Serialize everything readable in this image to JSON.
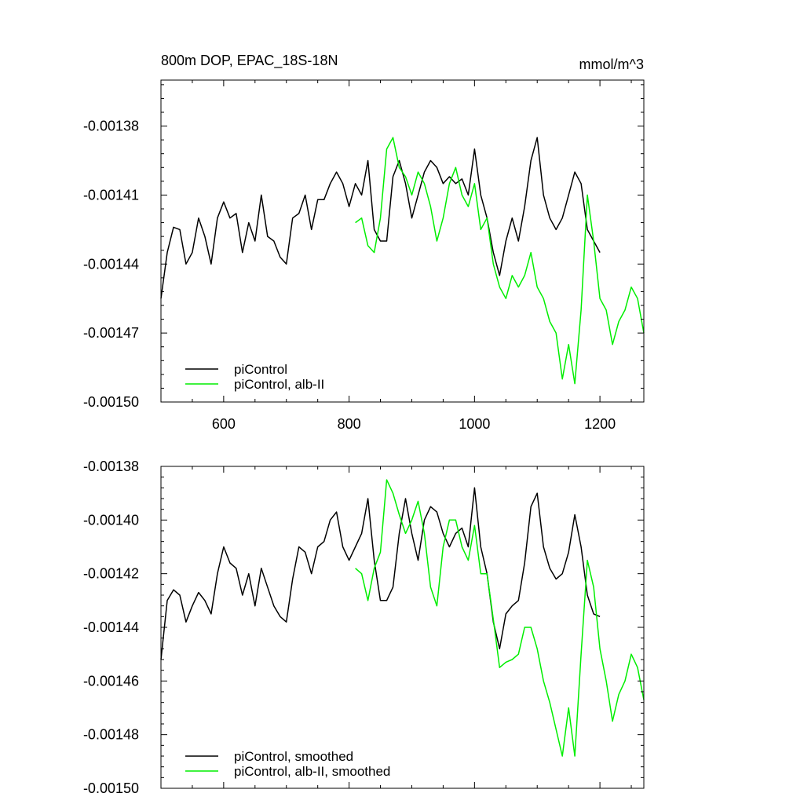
{
  "chart_data": [
    {
      "type": "line",
      "title": "800m DOP, EPAC_18S-18N",
      "units": "mmol/m^3",
      "xlim": [
        500,
        1270
      ],
      "ylim": [
        -0.0015,
        -0.00136
      ],
      "xticks": [
        600,
        800,
        1000,
        1200
      ],
      "xtick_labels": [
        "600",
        "800",
        "1000",
        "1200"
      ],
      "yticks": [
        -0.00138,
        -0.00141,
        -0.00144,
        -0.00147,
        -0.0015
      ],
      "ytick_labels": [
        "-0.00138",
        "-0.00141",
        "-0.00144",
        "-0.00147",
        "-0.00150"
      ],
      "legend_position": "bottom-left",
      "series": [
        {
          "name": "piControl",
          "color": "#000000",
          "x": [
            500,
            510,
            520,
            530,
            540,
            550,
            560,
            570,
            580,
            590,
            600,
            610,
            620,
            630,
            640,
            650,
            660,
            670,
            680,
            690,
            700,
            710,
            720,
            730,
            740,
            750,
            760,
            770,
            780,
            790,
            800,
            810,
            820,
            830,
            840,
            850,
            860,
            870,
            880,
            890,
            900,
            910,
            920,
            930,
            940,
            950,
            960,
            970,
            980,
            990,
            1000,
            1010,
            1020,
            1030,
            1040,
            1050,
            1060,
            1070,
            1080,
            1090,
            1100,
            1110,
            1120,
            1130,
            1140,
            1150,
            1160,
            1170,
            1180,
            1190,
            1200
          ],
          "y": [
            -0.001455,
            -0.001435,
            -0.001424,
            -0.001425,
            -0.00144,
            -0.001435,
            -0.00142,
            -0.001428,
            -0.00144,
            -0.00142,
            -0.001413,
            -0.00142,
            -0.001418,
            -0.001435,
            -0.001422,
            -0.00143,
            -0.00141,
            -0.001428,
            -0.00143,
            -0.001437,
            -0.00144,
            -0.00142,
            -0.001418,
            -0.00141,
            -0.001425,
            -0.001412,
            -0.001412,
            -0.001405,
            -0.0014,
            -0.001405,
            -0.001415,
            -0.001405,
            -0.00141,
            -0.001395,
            -0.001425,
            -0.00143,
            -0.00143,
            -0.001402,
            -0.001395,
            -0.001405,
            -0.00142,
            -0.00141,
            -0.0014,
            -0.001395,
            -0.001398,
            -0.001405,
            -0.001402,
            -0.001405,
            -0.001403,
            -0.00141,
            -0.00139,
            -0.00141,
            -0.00142,
            -0.001435,
            -0.001445,
            -0.00143,
            -0.00142,
            -0.00143,
            -0.001415,
            -0.001395,
            -0.001385,
            -0.00141,
            -0.00142,
            -0.001425,
            -0.00142,
            -0.00141,
            -0.0014,
            -0.001405,
            -0.001425,
            -0.00143,
            -0.001435
          ]
        },
        {
          "name": "piControl, alb-II",
          "color": "#00ee00",
          "x": [
            810,
            820,
            830,
            840,
            850,
            860,
            870,
            880,
            890,
            900,
            910,
            920,
            930,
            940,
            950,
            960,
            970,
            980,
            990,
            1000,
            1010,
            1020,
            1030,
            1040,
            1050,
            1060,
            1070,
            1080,
            1090,
            1100,
            1110,
            1120,
            1130,
            1140,
            1150,
            1160,
            1170,
            1180,
            1190,
            1200,
            1210,
            1220,
            1230,
            1240,
            1250,
            1260,
            1270
          ],
          "y": [
            -0.001422,
            -0.00142,
            -0.001432,
            -0.001435,
            -0.00142,
            -0.00139,
            -0.001385,
            -0.001398,
            -0.001402,
            -0.00141,
            -0.0014,
            -0.001405,
            -0.001415,
            -0.00143,
            -0.00142,
            -0.001405,
            -0.001398,
            -0.00141,
            -0.001415,
            -0.001405,
            -0.001425,
            -0.00142,
            -0.00144,
            -0.00145,
            -0.001455,
            -0.001445,
            -0.00145,
            -0.001445,
            -0.001435,
            -0.00145,
            -0.001455,
            -0.001465,
            -0.00147,
            -0.00149,
            -0.001475,
            -0.001492,
            -0.00146,
            -0.00141,
            -0.00143,
            -0.001455,
            -0.00146,
            -0.001475,
            -0.001465,
            -0.00146,
            -0.00145,
            -0.001455,
            -0.00147
          ]
        }
      ]
    },
    {
      "type": "line",
      "xlim": [
        500,
        1270
      ],
      "ylim": [
        -0.0015,
        -0.00138
      ],
      "xticks": [
        600,
        800,
        1000,
        1200
      ],
      "yticks": [
        -0.00138,
        -0.0014,
        -0.00142,
        -0.00144,
        -0.00146,
        -0.00148,
        -0.0015
      ],
      "ytick_labels": [
        "-0.00138",
        "-0.00140",
        "-0.00142",
        "-0.00144",
        "-0.00146",
        "-0.00148",
        "-0.00150"
      ],
      "legend_position": "bottom-left",
      "series": [
        {
          "name": "piControl, smoothed",
          "color": "#000000",
          "x": [
            500,
            510,
            520,
            530,
            540,
            550,
            560,
            570,
            580,
            590,
            600,
            610,
            620,
            630,
            640,
            650,
            660,
            670,
            680,
            690,
            700,
            710,
            720,
            730,
            740,
            750,
            760,
            770,
            780,
            790,
            800,
            810,
            820,
            830,
            840,
            850,
            860,
            870,
            880,
            890,
            900,
            910,
            920,
            930,
            940,
            950,
            960,
            970,
            980,
            990,
            1000,
            1010,
            1020,
            1030,
            1040,
            1050,
            1060,
            1070,
            1080,
            1090,
            1100,
            1110,
            1120,
            1130,
            1140,
            1150,
            1160,
            1170,
            1180,
            1190,
            1200
          ],
          "y": [
            -0.001452,
            -0.00143,
            -0.001426,
            -0.001428,
            -0.001438,
            -0.001432,
            -0.001427,
            -0.00143,
            -0.001435,
            -0.00142,
            -0.00141,
            -0.001416,
            -0.001418,
            -0.001428,
            -0.00142,
            -0.001432,
            -0.001418,
            -0.001425,
            -0.001432,
            -0.001436,
            -0.001438,
            -0.001422,
            -0.00141,
            -0.001412,
            -0.00142,
            -0.00141,
            -0.001408,
            -0.0014,
            -0.001397,
            -0.00141,
            -0.001415,
            -0.00141,
            -0.001405,
            -0.001392,
            -0.001415,
            -0.00143,
            -0.00143,
            -0.001425,
            -0.001405,
            -0.001392,
            -0.001405,
            -0.001415,
            -0.0014,
            -0.001395,
            -0.001397,
            -0.001405,
            -0.00141,
            -0.001405,
            -0.001403,
            -0.00141,
            -0.001388,
            -0.00141,
            -0.00142,
            -0.001438,
            -0.001448,
            -0.001435,
            -0.001432,
            -0.00143,
            -0.001416,
            -0.001395,
            -0.00139,
            -0.00141,
            -0.001418,
            -0.001422,
            -0.00142,
            -0.001412,
            -0.001398,
            -0.00141,
            -0.001428,
            -0.001435,
            -0.001436
          ]
        },
        {
          "name": "piControl, alb-II, smoothed",
          "color": "#00ee00",
          "x": [
            810,
            820,
            830,
            840,
            850,
            860,
            870,
            880,
            890,
            900,
            910,
            920,
            930,
            940,
            950,
            960,
            970,
            980,
            990,
            1000,
            1010,
            1020,
            1030,
            1040,
            1050,
            1060,
            1070,
            1080,
            1090,
            1100,
            1110,
            1120,
            1130,
            1140,
            1150,
            1160,
            1170,
            1180,
            1190,
            1200,
            1210,
            1220,
            1230,
            1240,
            1250,
            1260,
            1270
          ],
          "y": [
            -0.001418,
            -0.00142,
            -0.00143,
            -0.001418,
            -0.001412,
            -0.001385,
            -0.00139,
            -0.001398,
            -0.001405,
            -0.0014,
            -0.001393,
            -0.001405,
            -0.001425,
            -0.001432,
            -0.00141,
            -0.0014,
            -0.0014,
            -0.00141,
            -0.001415,
            -0.001402,
            -0.00142,
            -0.00142,
            -0.001437,
            -0.001455,
            -0.001453,
            -0.001452,
            -0.00145,
            -0.00144,
            -0.00144,
            -0.001448,
            -0.00146,
            -0.001468,
            -0.001478,
            -0.001488,
            -0.00147,
            -0.001488,
            -0.00145,
            -0.001415,
            -0.001425,
            -0.001448,
            -0.00146,
            -0.001475,
            -0.001465,
            -0.00146,
            -0.00145,
            -0.001455,
            -0.001467
          ]
        }
      ]
    }
  ]
}
